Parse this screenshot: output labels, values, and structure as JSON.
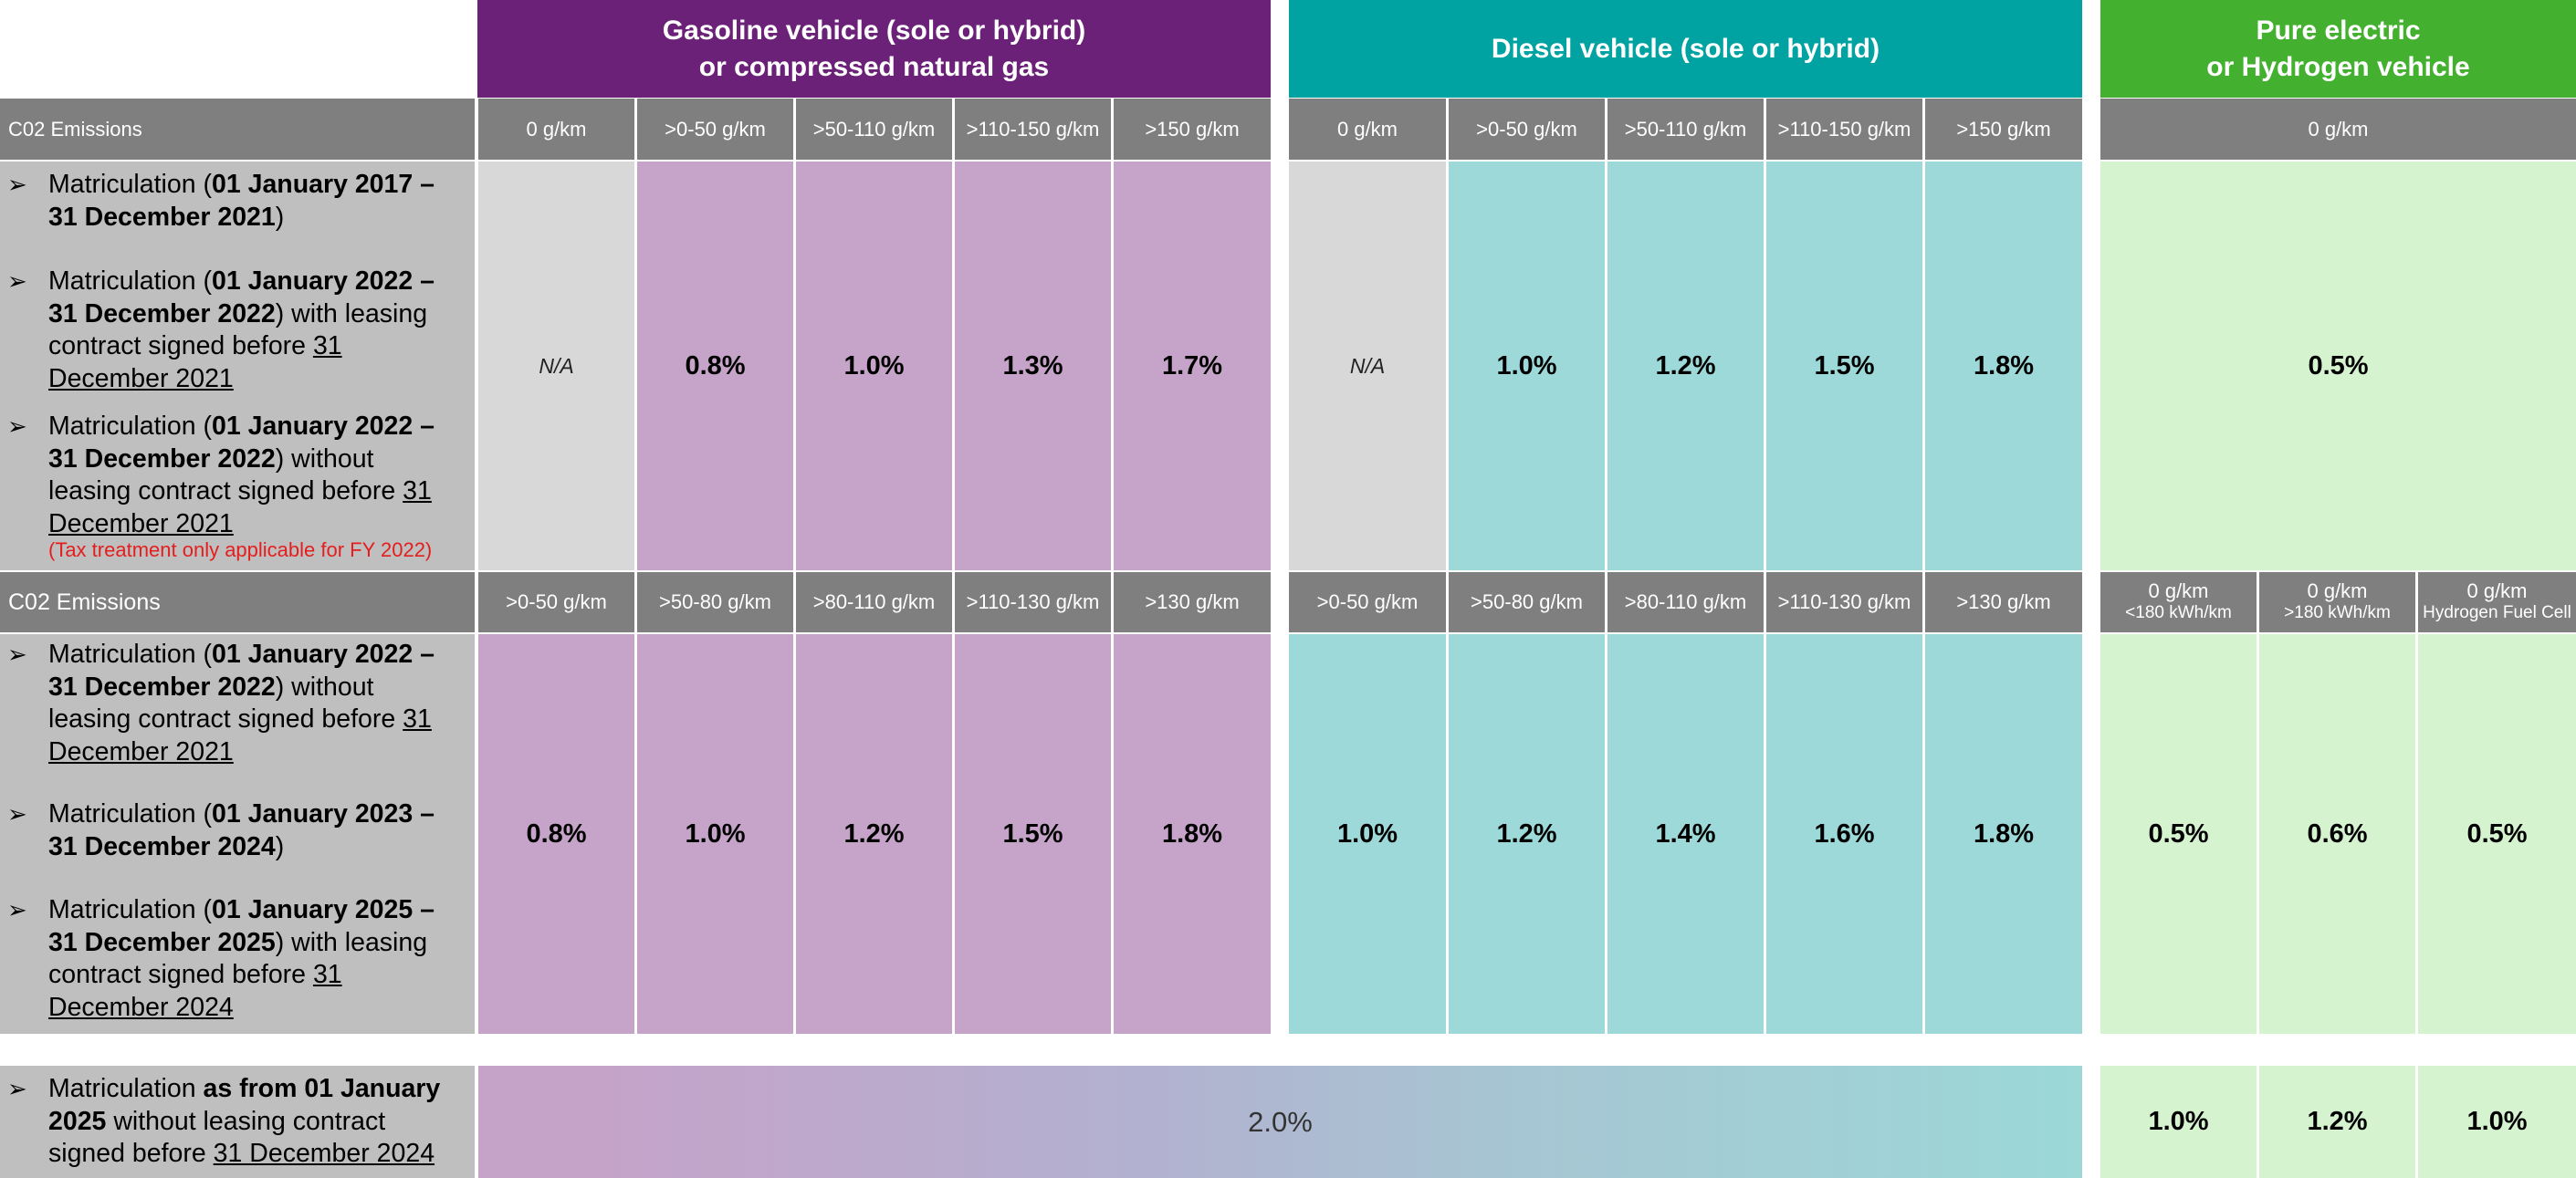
{
  "headers": {
    "gasoline": {
      "line1": "Gasoline vehicle (sole or hybrid)",
      "line2": "or compressed natural gas"
    },
    "diesel": {
      "line1": "Diesel vehicle (sole or hybrid)"
    },
    "electric": {
      "line1": "Pure electric",
      "line2": "or Hydrogen vehicle"
    }
  },
  "section1": {
    "emissions_label": "C02 Emissions",
    "gas_bands": [
      "0 g/km",
      ">0-50 g/km",
      ">50-110 g/km",
      ">110-150 g/km",
      ">150 g/km"
    ],
    "diesel_bands": [
      "0 g/km",
      ">0-50 g/km",
      ">50-110 g/km",
      ">110-150 g/km",
      ">150 g/km"
    ],
    "electric_band": "0 g/km",
    "label": {
      "item1": {
        "t1": "Matriculation (",
        "b1": "01 January 2017 –",
        "b2": "31 December 2021",
        "t2": ")"
      },
      "item2": {
        "t1": "Matriculation (",
        "b1": "01 January 2022 –",
        "b2": "31 December 2022",
        "t2": ") with leasing",
        "l3": "contract signed before ",
        "u1": "31",
        "u2": "December 2021"
      },
      "item3": {
        "t1": "Matriculation (",
        "b1": "01 January 2022 –",
        "b2": "31 December 2022",
        "t2": ") without",
        "l3": "leasing contract signed before ",
        "u1": "31",
        "u2": "December 2021"
      },
      "note": "(Tax treatment only applicable for FY 2022)"
    },
    "gas_values": [
      "N/A",
      "0.8%",
      "1.0%",
      "1.3%",
      "1.7%"
    ],
    "diesel_values": [
      "N/A",
      "1.0%",
      "1.2%",
      "1.5%",
      "1.8%"
    ],
    "electric_value": "0.5%"
  },
  "section2": {
    "emissions_label": "C02 Emissions",
    "gas_bands": [
      ">0-50 g/km",
      ">50-80 g/km",
      ">80-110 g/km",
      ">110-130 g/km",
      ">130 g/km"
    ],
    "diesel_bands": [
      ">0-50 g/km",
      ">50-80 g/km",
      ">80-110 g/km",
      ">110-130 g/km",
      ">130 g/km"
    ],
    "electric_bands": [
      {
        "l1": "0 g/km",
        "l2": "<180 kWh/km"
      },
      {
        "l1": "0 g/km",
        "l2": ">180 kWh/km"
      },
      {
        "l1": "0 g/km",
        "l2": "Hydrogen Fuel Cell"
      }
    ],
    "label": {
      "item1": {
        "t1": "Matriculation (",
        "b1": "01 January 2022 –",
        "b2": "31 December 2022",
        "t2": ") without",
        "l3": "leasing contract signed before ",
        "u1": "31",
        "u2": "December 2021"
      },
      "item2": {
        "t1": "Matriculation (",
        "b1": "01 January 2023 –",
        "b2": "31 December 2024",
        "t2": ")"
      },
      "item3": {
        "t1": "Matriculation (",
        "b1": "01 January 2025 –",
        "b2": "31 December 2025",
        "t2": ") with leasing",
        "l3": "contract signed before ",
        "u1": "31",
        "u2": "December 2024"
      }
    },
    "gas_values": [
      "0.8%",
      "1.0%",
      "1.2%",
      "1.5%",
      "1.8%"
    ],
    "diesel_values": [
      "1.0%",
      "1.2%",
      "1.4%",
      "1.6%",
      "1.8%"
    ],
    "electric_values": [
      "0.5%",
      "0.6%",
      "0.5%"
    ]
  },
  "section3": {
    "label": {
      "t1": "Matriculation ",
      "b1": "as from 01 January",
      "b2": "2025",
      "t2": " without leasing contract",
      "l3": "signed before ",
      "u1": "31 December 2024"
    },
    "combined_value": "2.0%",
    "electric_values": [
      "1.0%",
      "1.2%",
      "1.0%"
    ]
  }
}
